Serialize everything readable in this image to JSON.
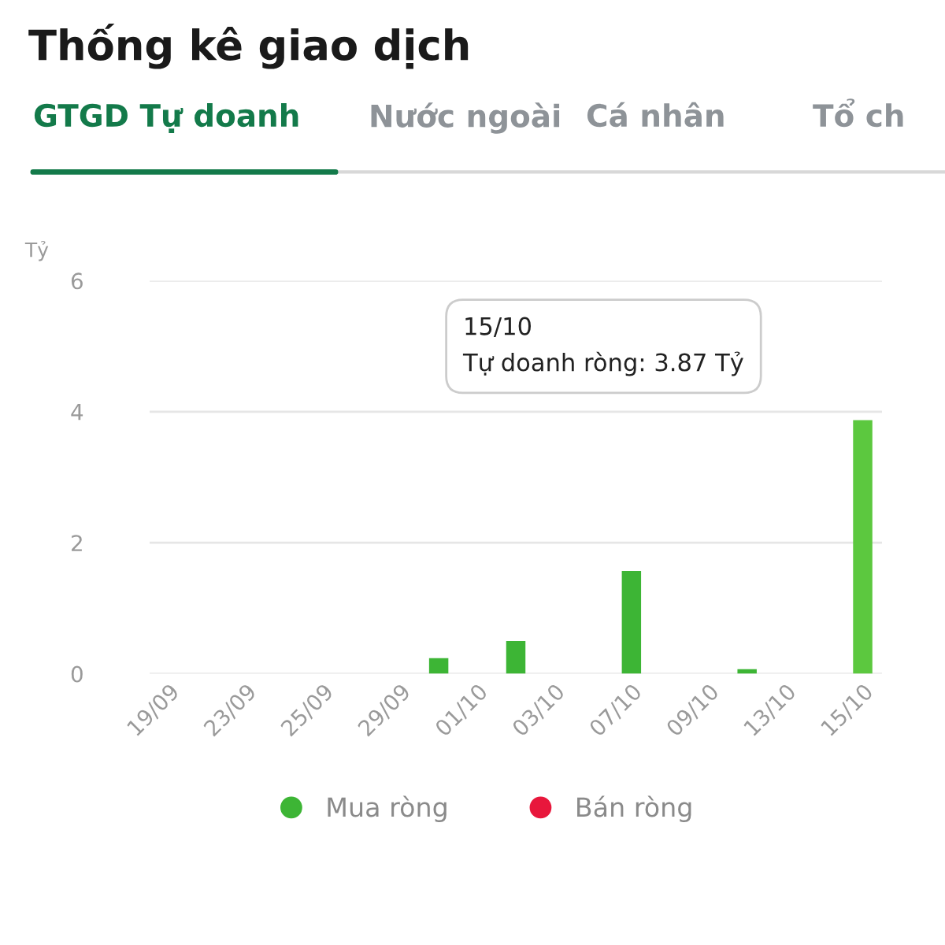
{
  "chart_data": {
    "type": "bar",
    "title": "Thống kê giao dịch",
    "categories": [
      "19/09",
      null,
      "23/09",
      null,
      "25/09",
      null,
      "29/09",
      null,
      "01/10",
      null,
      "03/10",
      null,
      "07/10",
      null,
      "09/10",
      null,
      "13/10",
      null,
      "15/10"
    ],
    "series": [
      {
        "name": "Mua ròng",
        "color": "#3db535",
        "colors": [
          "#3db535",
          "#3db535",
          "#3db535",
          "#3db535",
          "#3db535",
          "#3db535",
          "#3db535",
          "#3db535",
          "#3db535",
          "#3db535",
          "#3db535",
          "#3db535",
          "#3db535",
          "#3db535",
          "#3db535",
          "#3db535",
          "#3db535",
          "#3db535",
          "#5cc83f"
        ],
        "values": [
          null,
          null,
          null,
          null,
          null,
          null,
          null,
          0.24,
          null,
          0.5,
          null,
          null,
          1.57,
          null,
          null,
          0.07,
          null,
          null,
          3.87
        ]
      },
      {
        "name": "Bán ròng",
        "color": "#e8173c",
        "values": [
          null,
          null,
          null,
          null,
          null,
          null,
          null,
          null,
          null,
          null,
          null,
          null,
          null,
          null,
          null,
          null,
          null,
          null,
          null
        ]
      }
    ],
    "ylabel": "Tỷ",
    "ylim": [
      0,
      6
    ],
    "yticks": [
      0,
      2,
      4,
      6
    ],
    "grid": "y",
    "legend": "bottom",
    "annotations": [
      "GTGD Tự doanh",
      "Nước ngoài",
      "Cá nhân",
      "Tổ ch",
      "15/10\nTự doanh ròng: 3.87 Tỷ"
    ]
  }
}
